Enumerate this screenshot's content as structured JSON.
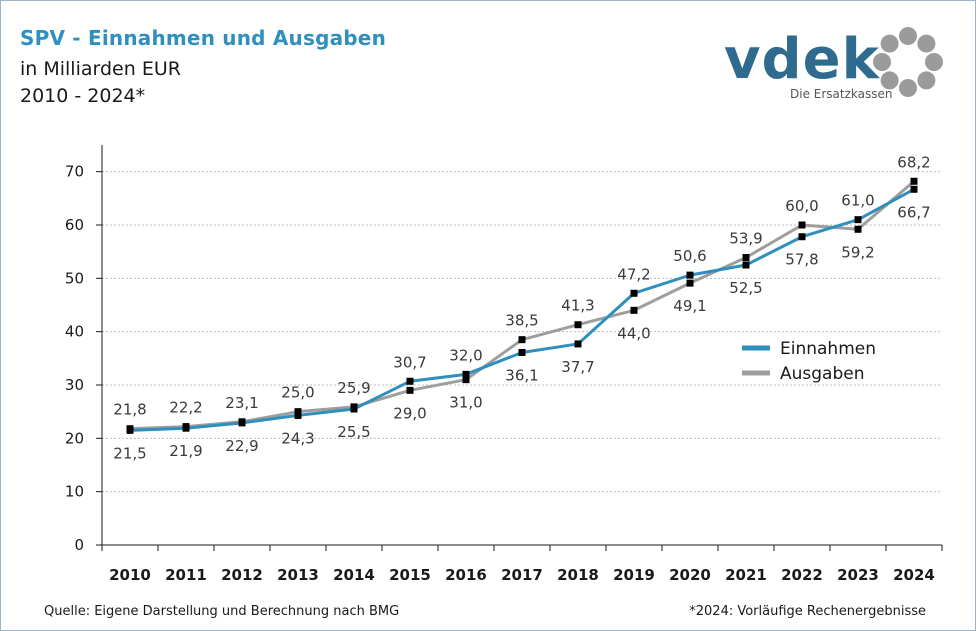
{
  "header": {
    "title": "SPV - Einnahmen und Ausgaben",
    "subtitle": "in Milliarden EUR",
    "years": "2010 - 2024*"
  },
  "logo": {
    "wordmark": "vdek",
    "tagline": "Die Ersatzkassen",
    "color": "#2e6b8e"
  },
  "footer": {
    "source": "Quelle: Eigene Darstellung und Berechnung nach BMG",
    "footnote": "*2024: Vorläufige Rechenergebnisse"
  },
  "chart_data": {
    "type": "line",
    "categories": [
      "2010",
      "2011",
      "2012",
      "2013",
      "2014",
      "2015",
      "2016",
      "2017",
      "2018",
      "2019",
      "2020",
      "2021",
      "2022",
      "2023",
      "2024"
    ],
    "ylim": [
      0,
      75
    ],
    "yticks": [
      0,
      10,
      20,
      30,
      40,
      50,
      60,
      70
    ],
    "grid": true,
    "legend_position": "right",
    "series": [
      {
        "name": "Einnahmen",
        "color": "#2f8fbd",
        "values": [
          21.5,
          21.9,
          22.9,
          24.3,
          25.5,
          30.7,
          32.0,
          36.1,
          37.7,
          47.2,
          50.6,
          52.5,
          57.8,
          61.0,
          66.7
        ],
        "labels": [
          "21,5",
          "21,9",
          "22,9",
          "24,3",
          "25,5",
          "30,7",
          "32,0",
          "36,1",
          "37,7",
          "47,2",
          "50,6",
          "52,5",
          "57,8",
          "61,0",
          "66,7"
        ],
        "label_pos": [
          "below",
          "below",
          "below",
          "below",
          "below",
          "above",
          "above",
          "below",
          "below",
          "above",
          "above",
          "below",
          "below",
          "above",
          "below"
        ]
      },
      {
        "name": "Ausgaben",
        "color": "#9e9e9e",
        "values": [
          21.8,
          22.2,
          23.1,
          25.0,
          25.9,
          29.0,
          31.0,
          38.5,
          41.3,
          44.0,
          49.1,
          53.9,
          60.0,
          59.2,
          68.2
        ],
        "labels": [
          "21,8",
          "22,2",
          "23,1",
          "25,0",
          "25,9",
          "29,0",
          "31,0",
          "38,5",
          "41,3",
          "44,0",
          "49,1",
          "53,9",
          "60,0",
          "59,2",
          "68,2"
        ],
        "label_pos": [
          "above",
          "above",
          "above",
          "above",
          "above",
          "below",
          "below",
          "above",
          "above",
          "below",
          "below",
          "above",
          "above",
          "below",
          "above"
        ]
      }
    ]
  }
}
